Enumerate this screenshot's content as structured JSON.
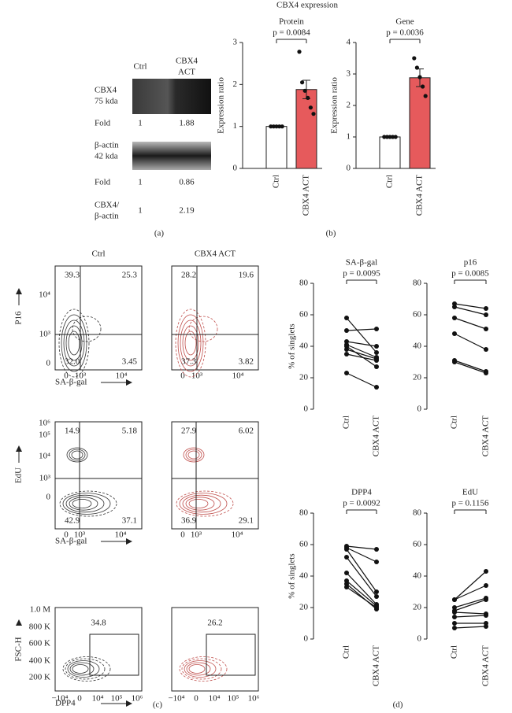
{
  "panel_labels": [
    "(a)",
    "(b)",
    "(c)",
    "(d)"
  ],
  "blot": {
    "column_labels": [
      [
        "Ctrl"
      ],
      [
        "CBX4",
        "ACT"
      ]
    ],
    "rows": [
      {
        "label": [
          "CBX4",
          "75 kda"
        ],
        "values": []
      },
      {
        "label": [
          "Fold"
        ],
        "values": [
          "1",
          "1.88"
        ]
      },
      {
        "label": [
          "β-actin",
          "42 kda"
        ],
        "values": []
      },
      {
        "label": [
          "Fold"
        ],
        "values": [
          "1",
          "0.86"
        ]
      },
      {
        "label": [
          "CBX4/",
          "β-actin"
        ],
        "values": [
          "1",
          "2.19"
        ]
      }
    ]
  },
  "panel_b_title": "CBX4 expression",
  "chart_data": [
    {
      "type": "bar",
      "title": "Protein",
      "ylabel": "Expression ratio",
      "p_label": "p = 0.0084",
      "categories": [
        "Ctrl",
        "CBX4 ACT"
      ],
      "values": [
        1,
        1.88
      ],
      "errors": [
        null,
        0.22
      ],
      "points": [
        [
          1,
          1,
          1,
          1,
          1
        ],
        [
          2.78,
          2.05,
          1.85,
          1.68,
          1.45,
          1.3
        ]
      ],
      "colors": [
        "#ffffff",
        "#e65a5c"
      ],
      "ylim": [
        0,
        3
      ],
      "yticks": [
        0,
        1,
        2,
        3
      ]
    },
    {
      "type": "bar",
      "title": "Gene",
      "ylabel": "Expression ratio",
      "p_label": "p = 0.0036",
      "categories": [
        "Ctrl",
        "CBX4 ACT"
      ],
      "values": [
        1,
        2.88
      ],
      "errors": [
        null,
        0.28
      ],
      "points": [
        [
          1,
          1,
          1,
          1,
          1
        ],
        [
          3.5,
          3.2,
          2.9,
          2.6,
          2.3
        ]
      ],
      "colors": [
        "#ffffff",
        "#e65a5c"
      ],
      "ylim": [
        0,
        4
      ],
      "yticks": [
        0,
        1,
        2,
        3,
        4
      ]
    },
    {
      "type": "paired",
      "title": "SA-β-gal",
      "ylabel": "% of singlets",
      "p_label": "p = 0.0095",
      "categories": [
        "Ctrl",
        "CBX4 ACT"
      ],
      "values": [
        [
          58,
          36
        ],
        [
          50,
          51
        ],
        [
          43,
          40
        ],
        [
          41,
          33
        ],
        [
          40,
          27
        ],
        [
          38,
          32
        ],
        [
          35,
          31
        ],
        [
          23,
          14
        ]
      ],
      "color": "#111111",
      "ylim": [
        0,
        80
      ],
      "yticks": [
        0,
        20,
        40,
        60,
        80
      ]
    },
    {
      "type": "paired",
      "title": "p16",
      "p_label": "p = 0.0085",
      "categories": [
        "Ctrl",
        "CBX4 ACT"
      ],
      "values": [
        [
          67,
          64
        ],
        [
          65,
          60
        ],
        [
          58,
          51
        ],
        [
          48,
          38
        ],
        [
          31,
          24
        ],
        [
          30,
          23
        ]
      ],
      "color": "#111111",
      "ylim": [
        0,
        80
      ],
      "yticks": [
        0,
        20,
        40,
        60,
        80
      ]
    },
    {
      "type": "paired",
      "title": "DPP4",
      "ylabel": "% of singlets",
      "p_label": "p = 0.0092",
      "categories": [
        "Ctrl",
        "CBX4 ACT"
      ],
      "values": [
        [
          59,
          57
        ],
        [
          58,
          49
        ],
        [
          57,
          30
        ],
        [
          52,
          27
        ],
        [
          42,
          22
        ],
        [
          37,
          21
        ],
        [
          35,
          19
        ],
        [
          33,
          20
        ]
      ],
      "color": "#111111",
      "ylim": [
        0,
        80
      ],
      "yticks": [
        0,
        20,
        40,
        60,
        80
      ]
    },
    {
      "type": "paired",
      "title": "EdU",
      "p_label": "p = 0.1156",
      "categories": [
        "Ctrl",
        "CBX4 ACT"
      ],
      "values": [
        [
          25,
          43
        ],
        [
          25,
          34
        ],
        [
          20,
          26
        ],
        [
          18,
          25
        ],
        [
          17,
          16
        ],
        [
          14,
          15
        ],
        [
          10,
          10
        ],
        [
          7,
          8
        ]
      ],
      "color": "#111111",
      "ylim": [
        0,
        80
      ],
      "yticks": [
        0,
        20,
        40,
        60,
        80
      ]
    }
  ],
  "flow": {
    "columns": [
      "Ctrl",
      "CBX4 ACT"
    ],
    "colors": [
      "#333333",
      "#c0504d"
    ],
    "rows": [
      {
        "y_label": "P16",
        "x_label": "SA-β-gal",
        "yticks": [
          "10⁴",
          "10³",
          "0"
        ],
        "xticks": [
          "0",
          "10³",
          "10⁴"
        ],
        "quadrants": [
          [
            "39.3",
            "25.3",
            "32.0",
            "3.45"
          ],
          [
            "28.2",
            "19.6",
            "37.3",
            "3.82"
          ]
        ]
      },
      {
        "y_label": "EdU",
        "x_label": "SA-β-gal",
        "yticks": [
          "10⁶",
          "10⁵",
          "10⁴",
          "10³",
          "0"
        ],
        "xticks": [
          "0",
          "10³",
          "10⁴"
        ],
        "quadrants": [
          [
            "14.9",
            "5.18",
            "42.9",
            "37.1"
          ],
          [
            "27.9",
            "6.02",
            "36.9",
            "29.1"
          ]
        ]
      },
      {
        "y_label": "FSC-H",
        "x_label": "DPP4",
        "yticks": [
          "1.0 M",
          "800 K",
          "600 K",
          "400 K",
          "200 K"
        ],
        "xticks": [
          "−10⁴",
          "0",
          "10⁴",
          "10⁵",
          "10⁶"
        ],
        "gates": [
          "34.8",
          "26.2"
        ]
      }
    ]
  }
}
